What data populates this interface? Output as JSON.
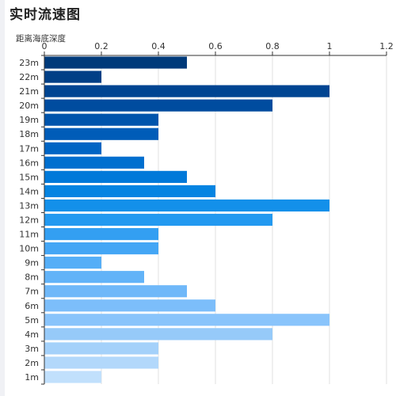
{
  "page": {
    "title": "实时流速图"
  },
  "chart_data": {
    "type": "bar",
    "orientation": "horizontal",
    "title": "实时流速图",
    "ylabel": "距离海底深度",
    "xlabel": "",
    "xlim": [
      0,
      1.2
    ],
    "xticks": [
      0,
      0.2,
      0.4,
      0.6,
      0.8,
      1,
      1.2
    ],
    "x_axis_position": "top",
    "grid": true,
    "categories": [
      "23m",
      "22m",
      "21m",
      "20m",
      "19m",
      "18m",
      "17m",
      "16m",
      "15m",
      "14m",
      "13m",
      "12m",
      "11m",
      "10m",
      "9m",
      "8m",
      "7m",
      "6m",
      "5m",
      "4m",
      "3m",
      "2m",
      "1m"
    ],
    "values": [
      0.5,
      0.2,
      1,
      0.8,
      0.4,
      0.4,
      0.2,
      0.35,
      0.5,
      0.6,
      1,
      0.8,
      0.4,
      0.4,
      0.2,
      0.35,
      0.5,
      0.6,
      1,
      0.8,
      0.4,
      0.4,
      0.2
    ],
    "colors": [
      "#003a7a",
      "#003f86",
      "#004592",
      "#004c9f",
      "#0054ac",
      "#005cb8",
      "#0065c4",
      "#006fcf",
      "#0079d9",
      "#0584e2",
      "#1390ea",
      "#2299f0",
      "#339ff2",
      "#44a6f5",
      "#55aef7",
      "#62b3f8",
      "#6fb8f9",
      "#7cbefa",
      "#89c4fb",
      "#96caf9",
      "#a4d1fa",
      "#b2d8fb",
      "#c1e0fc"
    ]
  }
}
